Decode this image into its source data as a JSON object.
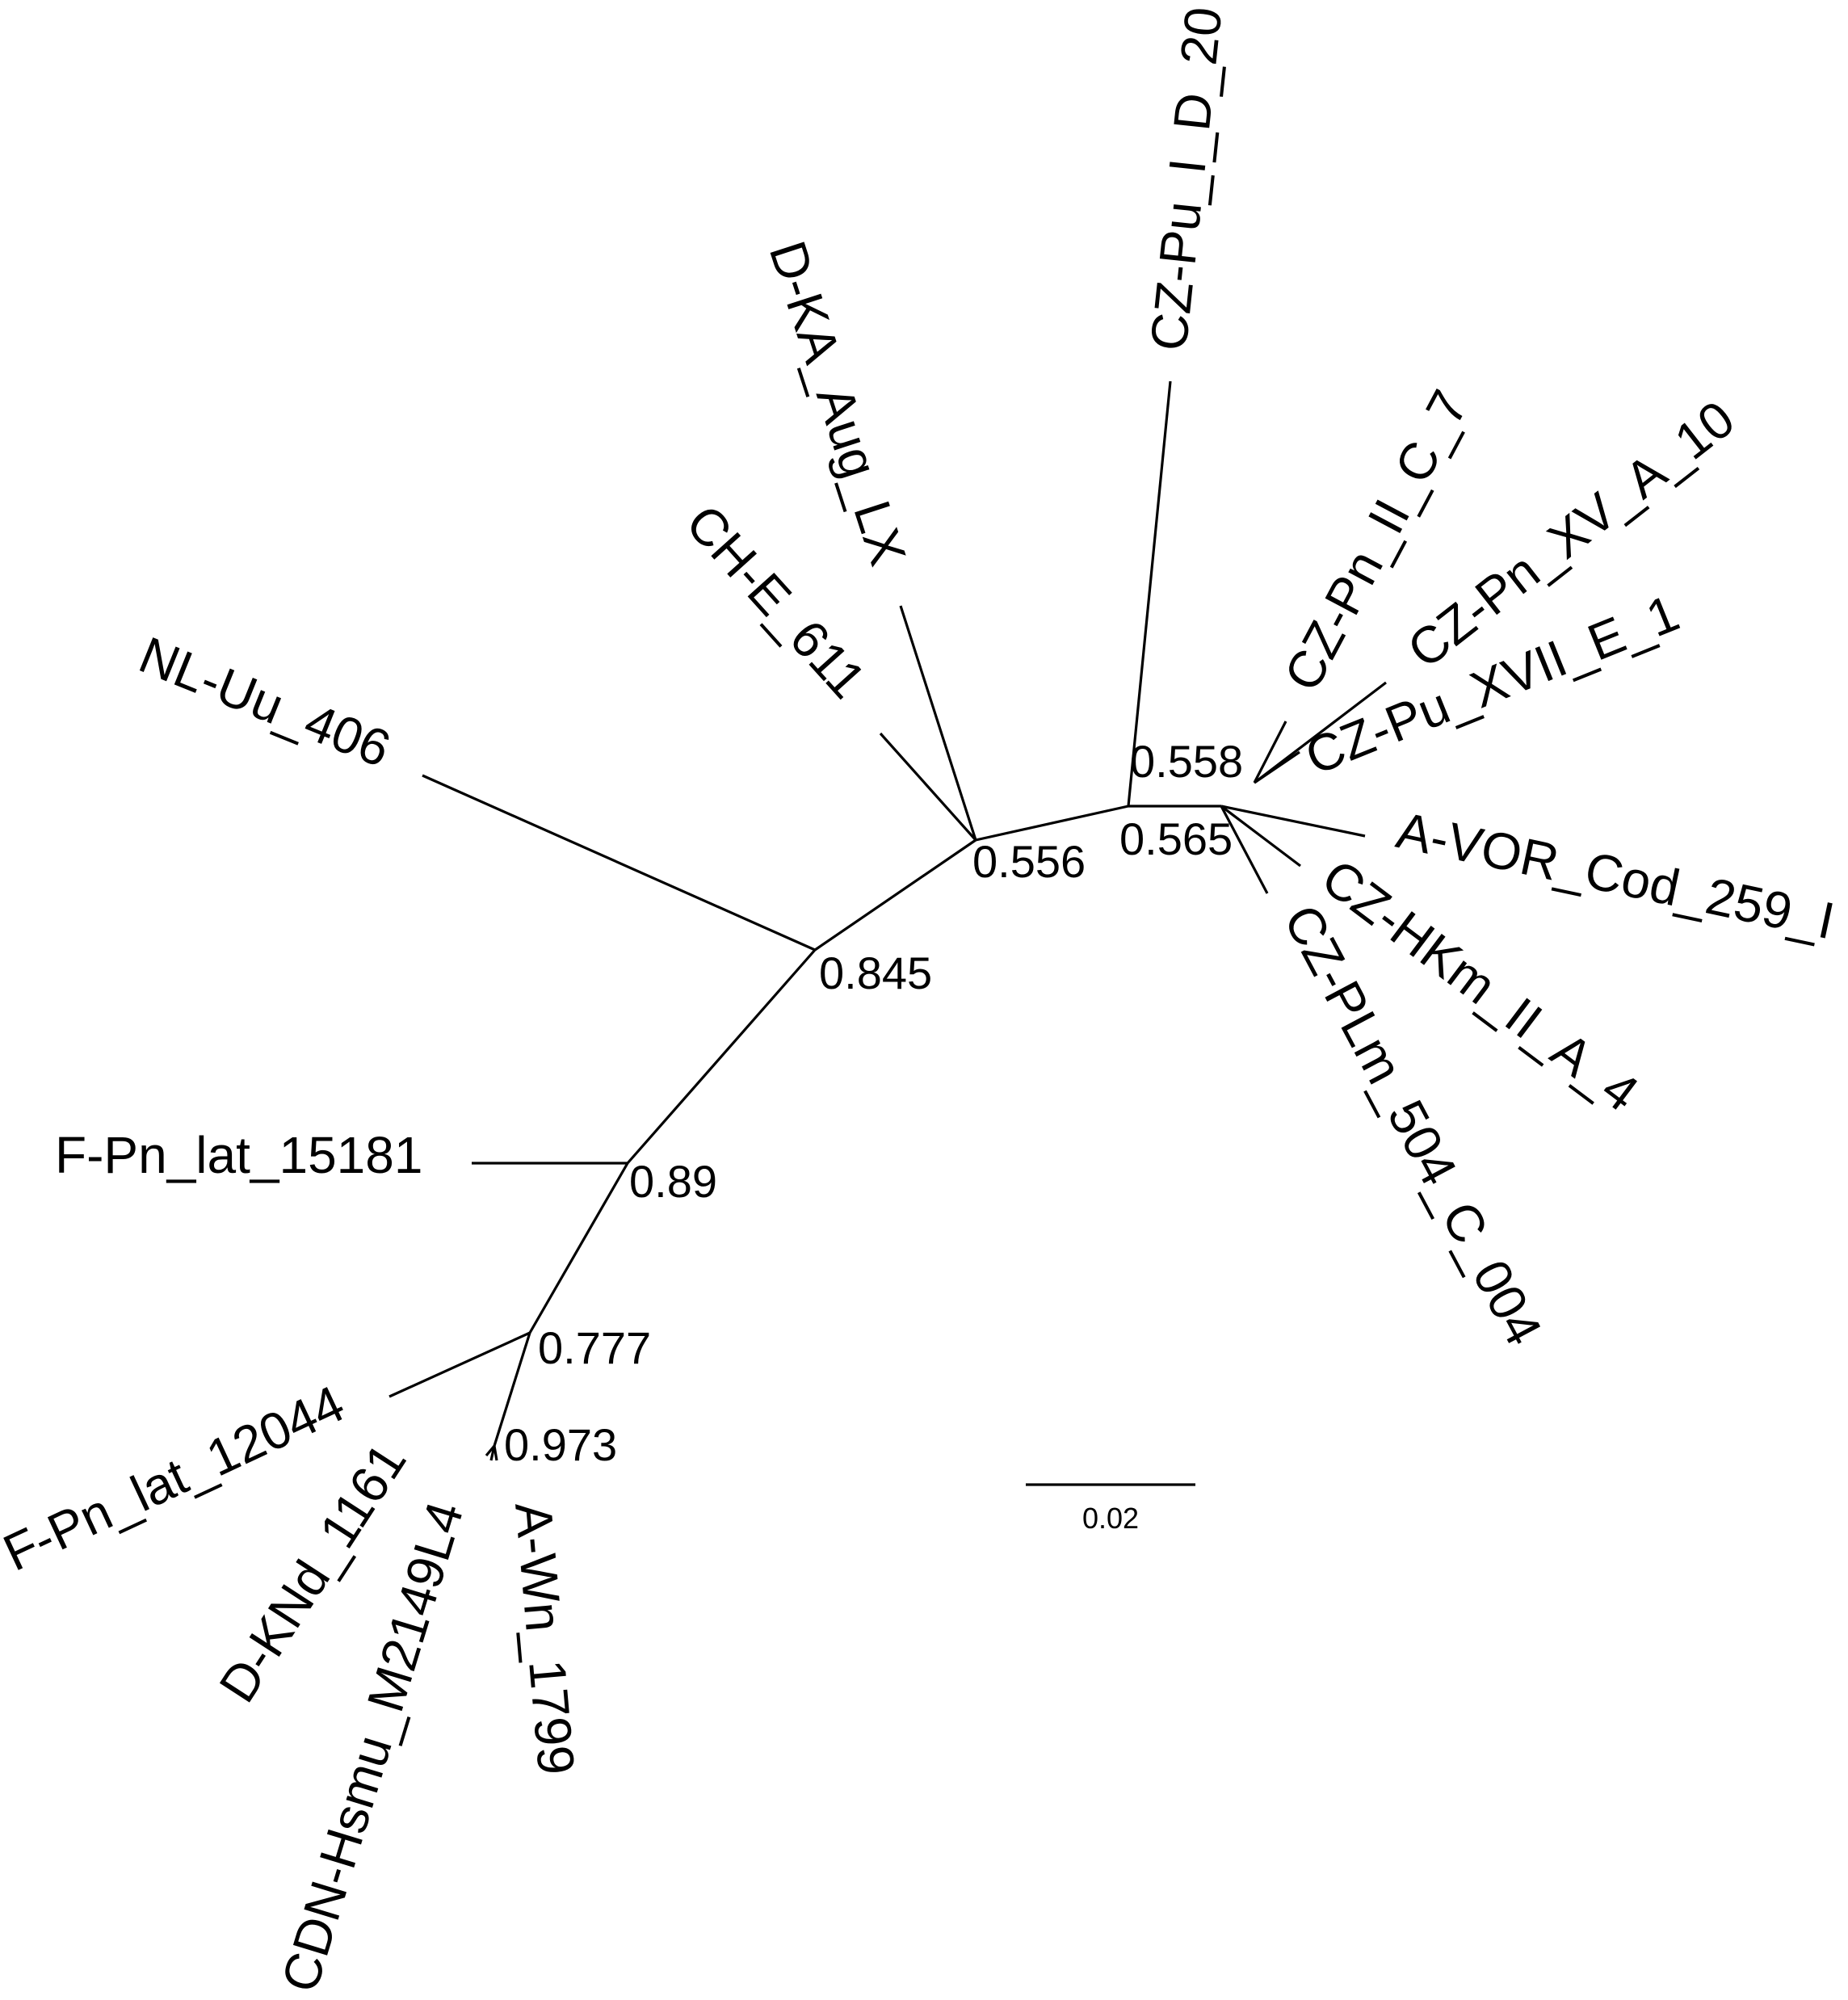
{
  "tree": {
    "tips": {
      "nl_uu_406": "NL-Uu_406",
      "ch_e_611": "CH-E_611",
      "d_ka_aug_lx": "D-KA_Aug_LX",
      "cz_pu_i_d_20": "CZ-Pu_I_D_20",
      "cz_pn_ii_c_7": "CZ-Pn_II_C_7",
      "cz_pn_xv_a_10": "CZ-Pn_XV_A_10",
      "cz_pu_xvii_e_1": "CZ-Pu_XVII_E_1",
      "a_vor_cod_259_i": "A-VOR_Cod_259_I",
      "cz_hkm_ii_a_4": "CZ-HKm_II_A_4",
      "cz_plm_504_c_004": "CZ-PLm_504_C_004",
      "f_pn_lat_15181": "F-Pn_lat_15181",
      "f_pn_lat_12044": "F-Pn_lat_12044",
      "d_knd_1161": "D-KNd_1161",
      "cdn_hsmu_m2149l4": "CDN-Hsmu_M2149L4",
      "a_wn_1799": "A-Wn_1799"
    },
    "supports": {
      "n845": "0.845",
      "n556": "0.556",
      "n558": "0.558",
      "n565": "0.565",
      "n89": "0.89",
      "n777": "0.777",
      "n973": "0.973"
    },
    "scale_bar": {
      "label": "0.02",
      "value": 0.02
    }
  }
}
